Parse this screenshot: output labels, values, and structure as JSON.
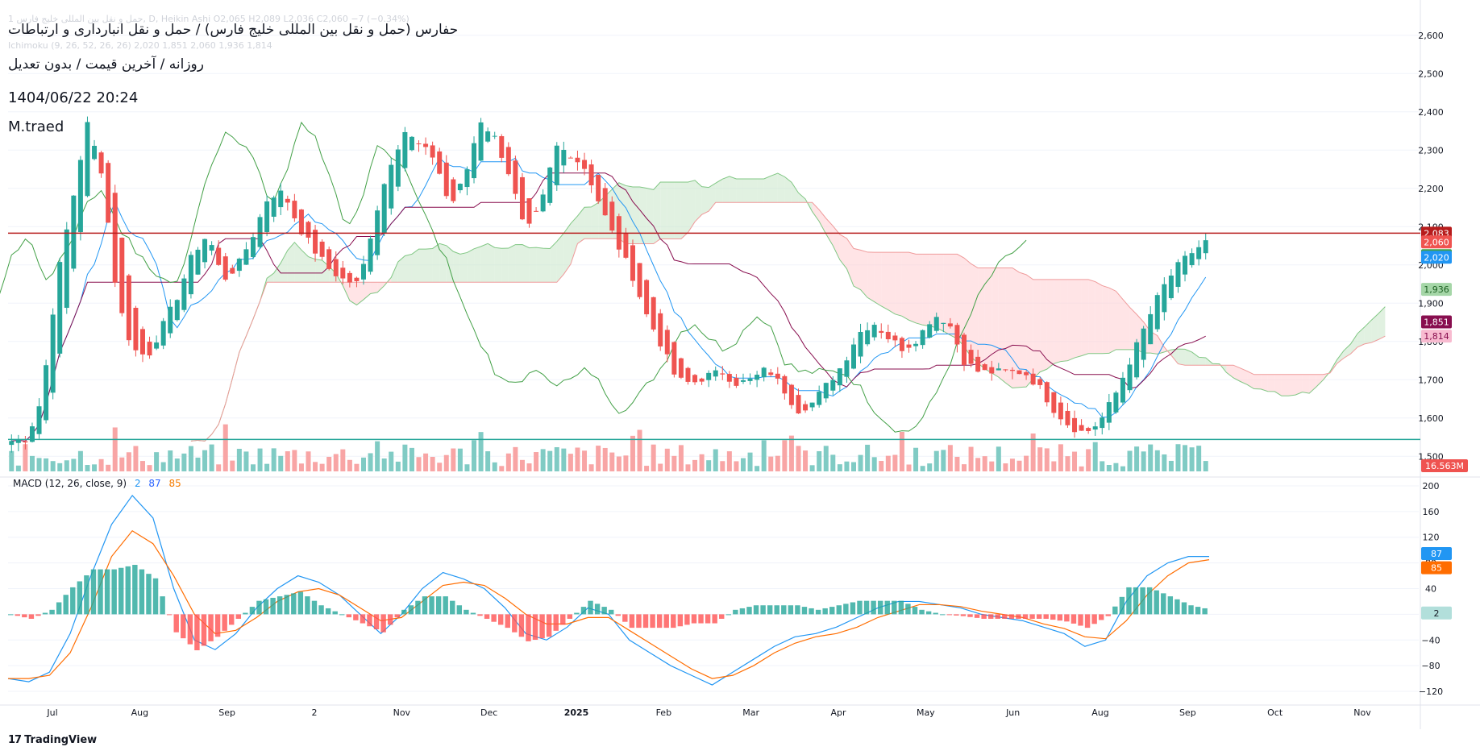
{
  "header": {
    "faint_line": "1 حمل و نقل بین المللی خلیج فارس, D, Heikin Ashi  O2,065  H2,089  L2,036  C2,060  −7 (−0.34%)",
    "faint_ichimoku": "Ichimoku (9, 26, 52, 26, 26)  2,020  1,851  2,060  1,936  1,814",
    "title": "حفارس (حمل و نقل بین المللی خلیج فارس) / حمل و نقل انبارداری و ارتباطات",
    "subtitle": "روزانه / آخرین قیمت / بدون تعدیل",
    "datetime": "1404/06/22 20:24",
    "author": "M.traed"
  },
  "macd_legend": {
    "label": "MACD (12, 26, close, 9)",
    "hist": "2",
    "macd": "87",
    "signal": "85"
  },
  "branding": {
    "logo_text": "TradingView"
  },
  "colors": {
    "up": "#26a69a",
    "down": "#ef5350",
    "tenkan": "#2196f3",
    "kijun": "#880e4f",
    "chikou": "#43a047",
    "cloud_bull": "#c8e6c9",
    "cloud_bear": "#ffcdd2",
    "macd": "#2196f3",
    "signal": "#ff6d00",
    "hline_top": "#b71c1c",
    "hline_bottom": "#26a69a"
  },
  "chart_data": [
    {
      "type": "candlestick",
      "subtype": "heikin_ashi",
      "symbol": "حفارس",
      "ylim": [
        1450,
        2650
      ],
      "x_ticks": [
        "Jul",
        "Aug",
        "Sep",
        "2",
        "Nov",
        "Dec",
        "2025",
        "Feb",
        "Mar",
        "Apr",
        "May",
        "Jun",
        "Aug",
        "Sep",
        "Oct",
        "Nov"
      ],
      "y_ticks": [
        "2,600",
        "2,500",
        "2,400",
        "2,300",
        "2,200",
        "2,100",
        "2,000",
        "1,900",
        "1,800",
        "1,700",
        "1,600",
        "1,500"
      ],
      "close_path": [
        1540,
        1545,
        1650,
        1960,
        2160,
        2370,
        2240,
        1910,
        1780,
        1760,
        1840,
        1920,
        2030,
        2080,
        1960,
        2000,
        2080,
        2180,
        2190,
        2100,
        2040,
        1990,
        1960,
        1950,
        2120,
        2260,
        2350,
        2310,
        2280,
        2150,
        2230,
        2380,
        2330,
        2230,
        2080,
        2150,
        2310,
        2290,
        2250,
        2150,
        2060,
        1980,
        1870,
        1790,
        1700,
        1690,
        1710,
        1720,
        1690,
        1700,
        1730,
        1680,
        1620,
        1640,
        1690,
        1740,
        1820,
        1850,
        1810,
        1780,
        1810,
        1870,
        1850,
        1750,
        1720,
        1720,
        1720,
        1720,
        1680,
        1620,
        1580,
        1560,
        1590,
        1660,
        1750,
        1840,
        1930,
        1990,
        2030,
        2060
      ],
      "horizontal_lines": [
        {
          "value": 2083,
          "label": "2,083",
          "color": "#b71c1c"
        },
        {
          "value": 1544,
          "label": "1,544",
          "color": "#26a69a"
        }
      ],
      "price_labels": [
        {
          "value": 2083,
          "label": "2,083",
          "color": "#b71c1c"
        },
        {
          "value": 2060,
          "label": "2,060",
          "color": "#ef5350"
        },
        {
          "value": 2060,
          "label": "2,060",
          "color": "#43a047",
          "offset_row": 1
        },
        {
          "value": 2020,
          "label": "2,020",
          "color": "#2196f3"
        },
        {
          "value": 1936,
          "label": "1,936",
          "color": "#a5d6a7",
          "text": "#1b5e20"
        },
        {
          "value": 1851,
          "label": "1,851",
          "color": "#880e4f"
        },
        {
          "value": 1814,
          "label": "1,814",
          "color": "#f8bbd0",
          "text": "#880e4f"
        }
      ],
      "volume_label": "16.563M"
    },
    {
      "type": "line",
      "name": "MACD (12, 26, close, 9)",
      "ylim": [
        -135,
        210
      ],
      "y_ticks": [
        "200",
        "160",
        "120",
        "80",
        "40",
        "0",
        "−40",
        "−80",
        "−120"
      ],
      "series": [
        {
          "name": "MACD",
          "values": [
            -100,
            -105,
            -90,
            -30,
            60,
            140,
            185,
            150,
            40,
            -40,
            -55,
            -30,
            10,
            40,
            60,
            50,
            30,
            0,
            -30,
            0,
            40,
            65,
            55,
            40,
            10,
            -30,
            -40,
            -20,
            10,
            0,
            -40,
            -60,
            -80,
            -95,
            -110,
            -90,
            -70,
            -50,
            -35,
            -30,
            -20,
            -5,
            10,
            20,
            20,
            15,
            10,
            0,
            -5,
            -10,
            -20,
            -30,
            -50,
            -40,
            20,
            60,
            80,
            90,
            90
          ]
        },
        {
          "name": "Signal",
          "values": [
            -100,
            -100,
            -95,
            -60,
            10,
            90,
            130,
            110,
            60,
            0,
            -30,
            -25,
            -5,
            20,
            35,
            40,
            30,
            10,
            -10,
            -5,
            20,
            45,
            50,
            45,
            25,
            0,
            -15,
            -15,
            -5,
            -5,
            -25,
            -45,
            -65,
            -85,
            -100,
            -95,
            -80,
            -60,
            -45,
            -35,
            -30,
            -20,
            -5,
            5,
            15,
            15,
            12,
            5,
            0,
            -5,
            -15,
            -22,
            -35,
            -38,
            -10,
            30,
            60,
            80,
            85
          ]
        }
      ],
      "last_values": {
        "macd": 87,
        "signal": 85,
        "histogram": 2
      }
    }
  ]
}
